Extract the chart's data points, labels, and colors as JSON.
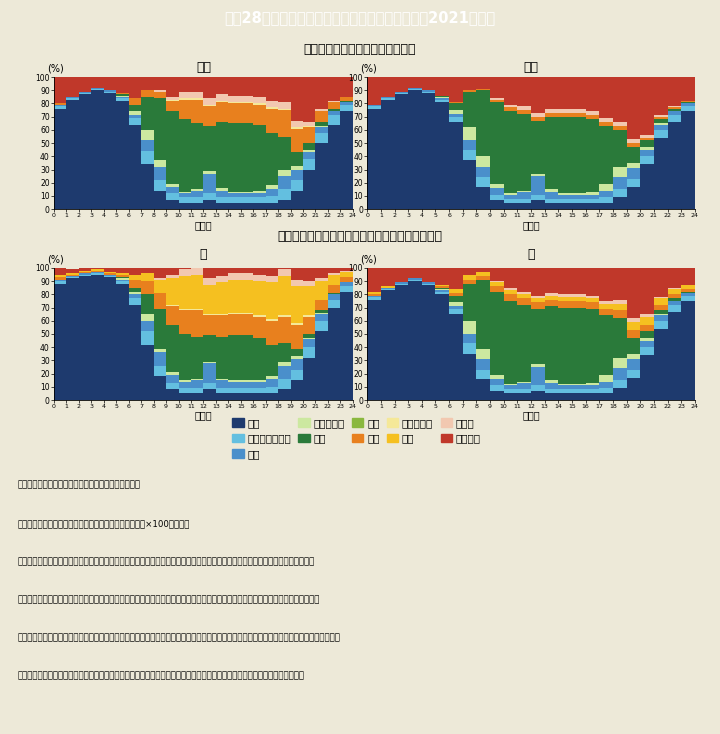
{
  "title": "特－28図　時刻区分別行動者率（平日、令和３（2021）年）",
  "subtitle1": "＜単独世帯の世帯主（有業者）＞",
  "subtitle2": "＜末子の年齢が６歳未満の共働き夫婦の妻と夫＞",
  "label_f1": "女性",
  "label_m1": "男性",
  "label_f2": "妻",
  "label_m2": "夫",
  "ylabel": "(%)",
  "xlabel": "（時）",
  "title_bg": "#29b9ce",
  "bg_color": "#ede9d8",
  "legend_bg": "#ffffff",
  "categories": [
    "睡眠",
    "身の回りの用事",
    "食事",
    "通勤・通学",
    "仕事",
    "学業",
    "家事",
    "介護・看護",
    "育児",
    "買い物",
    "３次活動"
  ],
  "colors": [
    "#1e3a6e",
    "#63bfe0",
    "#4a8fcb",
    "#cce8a0",
    "#2a7a3a",
    "#8ab83e",
    "#e8801e",
    "#f5e898",
    "#f5c020",
    "#f2c8b0",
    "#c0382a"
  ],
  "hours": [
    0,
    1,
    2,
    3,
    4,
    5,
    6,
    7,
    8,
    9,
    10,
    11,
    12,
    13,
    14,
    15,
    16,
    17,
    18,
    19,
    20,
    21,
    22,
    23,
    24
  ],
  "female_single": {
    "sleep": [
      76,
      83,
      87,
      90,
      88,
      82,
      64,
      34,
      14,
      7,
      5,
      5,
      7,
      5,
      5,
      5,
      5,
      5,
      7,
      14,
      30,
      50,
      64,
      74,
      78
    ],
    "personal": [
      2,
      1,
      1,
      1,
      1,
      2,
      5,
      10,
      8,
      5,
      4,
      4,
      5,
      4,
      4,
      4,
      4,
      5,
      8,
      8,
      8,
      8,
      7,
      5,
      3
    ],
    "meal": [
      1,
      1,
      1,
      1,
      1,
      1,
      2,
      8,
      10,
      5,
      3,
      5,
      15,
      5,
      3,
      3,
      3,
      5,
      10,
      8,
      5,
      4,
      3,
      2,
      1
    ],
    "commute": [
      0,
      0,
      0,
      0,
      0,
      1,
      3,
      8,
      5,
      2,
      1,
      1,
      2,
      2,
      1,
      1,
      2,
      3,
      5,
      3,
      2,
      1,
      0,
      0,
      0
    ],
    "work": [
      0,
      0,
      0,
      0,
      0,
      1,
      5,
      25,
      47,
      55,
      55,
      50,
      34,
      50,
      52,
      52,
      50,
      40,
      25,
      10,
      5,
      3,
      2,
      1,
      0
    ],
    "study": [
      0,
      0,
      0,
      0,
      0,
      0,
      0,
      0,
      0,
      0,
      0,
      0,
      0,
      0,
      0,
      0,
      0,
      0,
      0,
      0,
      0,
      0,
      0,
      0,
      0
    ],
    "housework": [
      1,
      0,
      0,
      0,
      0,
      1,
      5,
      5,
      5,
      8,
      15,
      18,
      15,
      15,
      15,
      15,
      15,
      18,
      20,
      18,
      12,
      8,
      5,
      3,
      1
    ],
    "care": [
      0,
      0,
      0,
      0,
      0,
      0,
      0,
      0,
      0,
      1,
      1,
      1,
      1,
      1,
      1,
      1,
      1,
      1,
      1,
      1,
      1,
      0,
      0,
      0,
      0
    ],
    "childcare": [
      0,
      0,
      0,
      0,
      0,
      0,
      0,
      0,
      0,
      0,
      0,
      0,
      0,
      0,
      0,
      0,
      0,
      0,
      0,
      0,
      0,
      0,
      0,
      0,
      0
    ],
    "shopping": [
      0,
      0,
      0,
      0,
      0,
      0,
      0,
      0,
      1,
      2,
      5,
      5,
      5,
      5,
      5,
      5,
      5,
      5,
      5,
      5,
      3,
      2,
      1,
      0,
      0
    ],
    "tertiary": [
      20,
      15,
      11,
      8,
      10,
      12,
      16,
      10,
      10,
      15,
      11,
      11,
      16,
      13,
      14,
      14,
      15,
      18,
      19,
      33,
      34,
      24,
      18,
      16,
      17
    ]
  },
  "male_single": {
    "sleep": [
      76,
      83,
      87,
      90,
      88,
      81,
      66,
      37,
      17,
      7,
      5,
      5,
      7,
      5,
      5,
      5,
      5,
      5,
      9,
      17,
      34,
      54,
      66,
      74,
      78
    ],
    "personal": [
      2,
      1,
      1,
      1,
      1,
      2,
      4,
      8,
      7,
      4,
      3,
      3,
      4,
      3,
      3,
      3,
      3,
      4,
      6,
      6,
      6,
      6,
      5,
      4,
      3
    ],
    "meal": [
      1,
      1,
      1,
      1,
      1,
      1,
      2,
      7,
      8,
      5,
      3,
      5,
      14,
      5,
      3,
      3,
      3,
      5,
      9,
      8,
      5,
      4,
      3,
      2,
      1
    ],
    "commute": [
      0,
      0,
      0,
      0,
      0,
      1,
      3,
      10,
      8,
      3,
      1,
      1,
      2,
      2,
      1,
      1,
      2,
      5,
      8,
      4,
      2,
      1,
      0,
      0,
      0
    ],
    "work": [
      0,
      0,
      0,
      0,
      0,
      1,
      5,
      27,
      50,
      62,
      62,
      58,
      40,
      55,
      58,
      58,
      55,
      44,
      28,
      12,
      5,
      3,
      2,
      1,
      0
    ],
    "study": [
      0,
      0,
      0,
      0,
      0,
      0,
      0,
      0,
      0,
      0,
      0,
      0,
      0,
      0,
      0,
      0,
      0,
      0,
      0,
      0,
      0,
      0,
      0,
      0,
      0
    ],
    "housework": [
      0,
      0,
      0,
      0,
      0,
      0,
      1,
      1,
      1,
      2,
      3,
      3,
      3,
      3,
      3,
      3,
      3,
      3,
      3,
      3,
      2,
      2,
      1,
      1,
      0
    ],
    "care": [
      0,
      0,
      0,
      0,
      0,
      0,
      0,
      0,
      0,
      0,
      0,
      0,
      0,
      0,
      0,
      0,
      0,
      0,
      0,
      0,
      0,
      0,
      0,
      0,
      0
    ],
    "childcare": [
      0,
      0,
      0,
      0,
      0,
      0,
      0,
      0,
      0,
      0,
      0,
      0,
      0,
      0,
      0,
      0,
      0,
      0,
      0,
      0,
      0,
      0,
      0,
      0,
      0
    ],
    "shopping": [
      0,
      0,
      0,
      0,
      0,
      0,
      0,
      0,
      0,
      1,
      2,
      3,
      3,
      3,
      3,
      3,
      3,
      3,
      3,
      3,
      2,
      1,
      1,
      0,
      0
    ],
    "tertiary": [
      21,
      15,
      11,
      8,
      10,
      14,
      19,
      10,
      9,
      16,
      21,
      22,
      27,
      24,
      24,
      24,
      26,
      31,
      34,
      47,
      44,
      29,
      22,
      19,
      18
    ]
  },
  "wife_young": {
    "sleep": [
      88,
      92,
      94,
      95,
      93,
      88,
      72,
      42,
      18,
      8,
      5,
      5,
      8,
      5,
      5,
      5,
      5,
      5,
      8,
      15,
      32,
      52,
      70,
      82,
      88
    ],
    "personal": [
      2,
      1,
      1,
      1,
      1,
      2,
      5,
      10,
      8,
      5,
      4,
      4,
      5,
      4,
      4,
      4,
      4,
      5,
      8,
      8,
      8,
      8,
      6,
      4,
      3
    ],
    "meal": [
      1,
      1,
      1,
      1,
      1,
      1,
      3,
      8,
      10,
      6,
      5,
      6,
      15,
      6,
      5,
      5,
      5,
      6,
      10,
      8,
      6,
      5,
      4,
      3,
      2
    ],
    "commute": [
      0,
      0,
      0,
      0,
      0,
      1,
      2,
      5,
      3,
      2,
      1,
      1,
      1,
      1,
      1,
      1,
      1,
      2,
      3,
      2,
      1,
      1,
      0,
      0,
      0
    ],
    "work": [
      0,
      0,
      0,
      0,
      0,
      1,
      3,
      15,
      30,
      36,
      35,
      32,
      20,
      32,
      34,
      34,
      32,
      24,
      14,
      6,
      3,
      2,
      1,
      0,
      0
    ],
    "study": [
      0,
      0,
      0,
      0,
      0,
      0,
      0,
      0,
      0,
      0,
      0,
      0,
      0,
      0,
      0,
      0,
      0,
      0,
      0,
      0,
      0,
      0,
      0,
      0,
      0
    ],
    "housework": [
      2,
      1,
      1,
      1,
      1,
      2,
      6,
      10,
      12,
      14,
      18,
      20,
      15,
      16,
      16,
      16,
      16,
      18,
      20,
      18,
      13,
      8,
      6,
      4,
      3
    ],
    "care": [
      0,
      0,
      0,
      0,
      0,
      0,
      0,
      0,
      0,
      1,
      1,
      1,
      1,
      1,
      1,
      1,
      1,
      1,
      1,
      1,
      1,
      0,
      0,
      0,
      0
    ],
    "childcare": [
      2,
      1,
      1,
      1,
      1,
      1,
      4,
      6,
      10,
      20,
      25,
      26,
      22,
      24,
      25,
      25,
      26,
      28,
      30,
      28,
      22,
      14,
      8,
      4,
      3
    ],
    "shopping": [
      0,
      0,
      0,
      0,
      0,
      0,
      0,
      0,
      1,
      3,
      5,
      5,
      5,
      5,
      5,
      5,
      5,
      5,
      5,
      5,
      4,
      2,
      1,
      1,
      0
    ],
    "tertiary": [
      5,
      3,
      2,
      1,
      3,
      4,
      5,
      4,
      8,
      5,
      1,
      0,
      8,
      6,
      4,
      4,
      5,
      6,
      9,
      9,
      10,
      8,
      4,
      2,
      1
    ]
  },
  "husband_young": {
    "sleep": [
      76,
      83,
      87,
      90,
      87,
      80,
      65,
      35,
      16,
      7,
      5,
      5,
      7,
      5,
      5,
      5,
      5,
      5,
      9,
      17,
      34,
      54,
      67,
      75,
      78
    ],
    "personal": [
      2,
      1,
      1,
      1,
      1,
      2,
      4,
      8,
      7,
      4,
      3,
      3,
      4,
      3,
      3,
      3,
      3,
      4,
      6,
      6,
      6,
      6,
      5,
      4,
      3
    ],
    "meal": [
      1,
      1,
      1,
      1,
      1,
      1,
      2,
      7,
      8,
      5,
      3,
      5,
      14,
      5,
      3,
      3,
      3,
      5,
      9,
      8,
      5,
      4,
      3,
      2,
      1
    ],
    "commute": [
      0,
      0,
      0,
      0,
      0,
      1,
      3,
      10,
      8,
      3,
      1,
      1,
      2,
      2,
      1,
      1,
      2,
      5,
      8,
      4,
      2,
      1,
      0,
      0,
      0
    ],
    "work": [
      0,
      0,
      0,
      0,
      0,
      1,
      5,
      28,
      52,
      63,
      63,
      58,
      42,
      56,
      58,
      58,
      56,
      45,
      30,
      12,
      5,
      3,
      2,
      1,
      0
    ],
    "study": [
      0,
      0,
      0,
      0,
      0,
      0,
      0,
      0,
      0,
      0,
      0,
      0,
      0,
      0,
      0,
      0,
      0,
      0,
      0,
      0,
      0,
      0,
      0,
      0,
      0
    ],
    "housework": [
      1,
      0,
      0,
      0,
      0,
      1,
      2,
      3,
      3,
      4,
      5,
      5,
      5,
      5,
      5,
      5,
      5,
      5,
      6,
      6,
      5,
      4,
      3,
      2,
      1
    ],
    "care": [
      0,
      0,
      0,
      0,
      0,
      0,
      0,
      0,
      0,
      0,
      0,
      0,
      0,
      0,
      0,
      0,
      0,
      0,
      0,
      0,
      0,
      0,
      0,
      0,
      0
    ],
    "childcare": [
      2,
      1,
      0,
      0,
      0,
      1,
      3,
      4,
      3,
      3,
      3,
      3,
      3,
      3,
      3,
      3,
      3,
      4,
      5,
      6,
      6,
      5,
      4,
      3,
      2
    ],
    "shopping": [
      0,
      0,
      0,
      0,
      0,
      0,
      0,
      0,
      0,
      1,
      2,
      2,
      2,
      2,
      2,
      2,
      2,
      2,
      3,
      3,
      2,
      1,
      1,
      0,
      0
    ],
    "tertiary": [
      18,
      14,
      11,
      9,
      11,
      13,
      16,
      5,
      3,
      10,
      15,
      18,
      21,
      19,
      20,
      20,
      21,
      25,
      24,
      38,
      40,
      26,
      17,
      14,
      15
    ]
  },
  "notes": [
    "（備考）１．総務省「社会生活基本調査」より作成。",
    "　　　　２．「行動者率」は、行動者数／属性別の人口×100（％）。",
    "　　　　３．「３次活動」とは、睡眠、食事など生理的に必要な活動（１次活動）、仕事、家事など社会生活を営む上で義務的な",
    "　　　　　　性格の強い活動（２次活動）以外の、各人が自由に使える時間における活動を指し、「移動（通勤・通学を除く）」、",
    "　　　　　　「テレビ・ラジオ・新聞・雑誌」、「休養・くつろぎ」、「学習・自己啓発・訓練（学業以外）」、「趣味・娯楽」、「スポー",
    "　　　　　　ツ」、「ボランティア活動・社会参加活動」、「交際・付き合い」、「受診・療養」、「その他」が含まれる。"
  ]
}
